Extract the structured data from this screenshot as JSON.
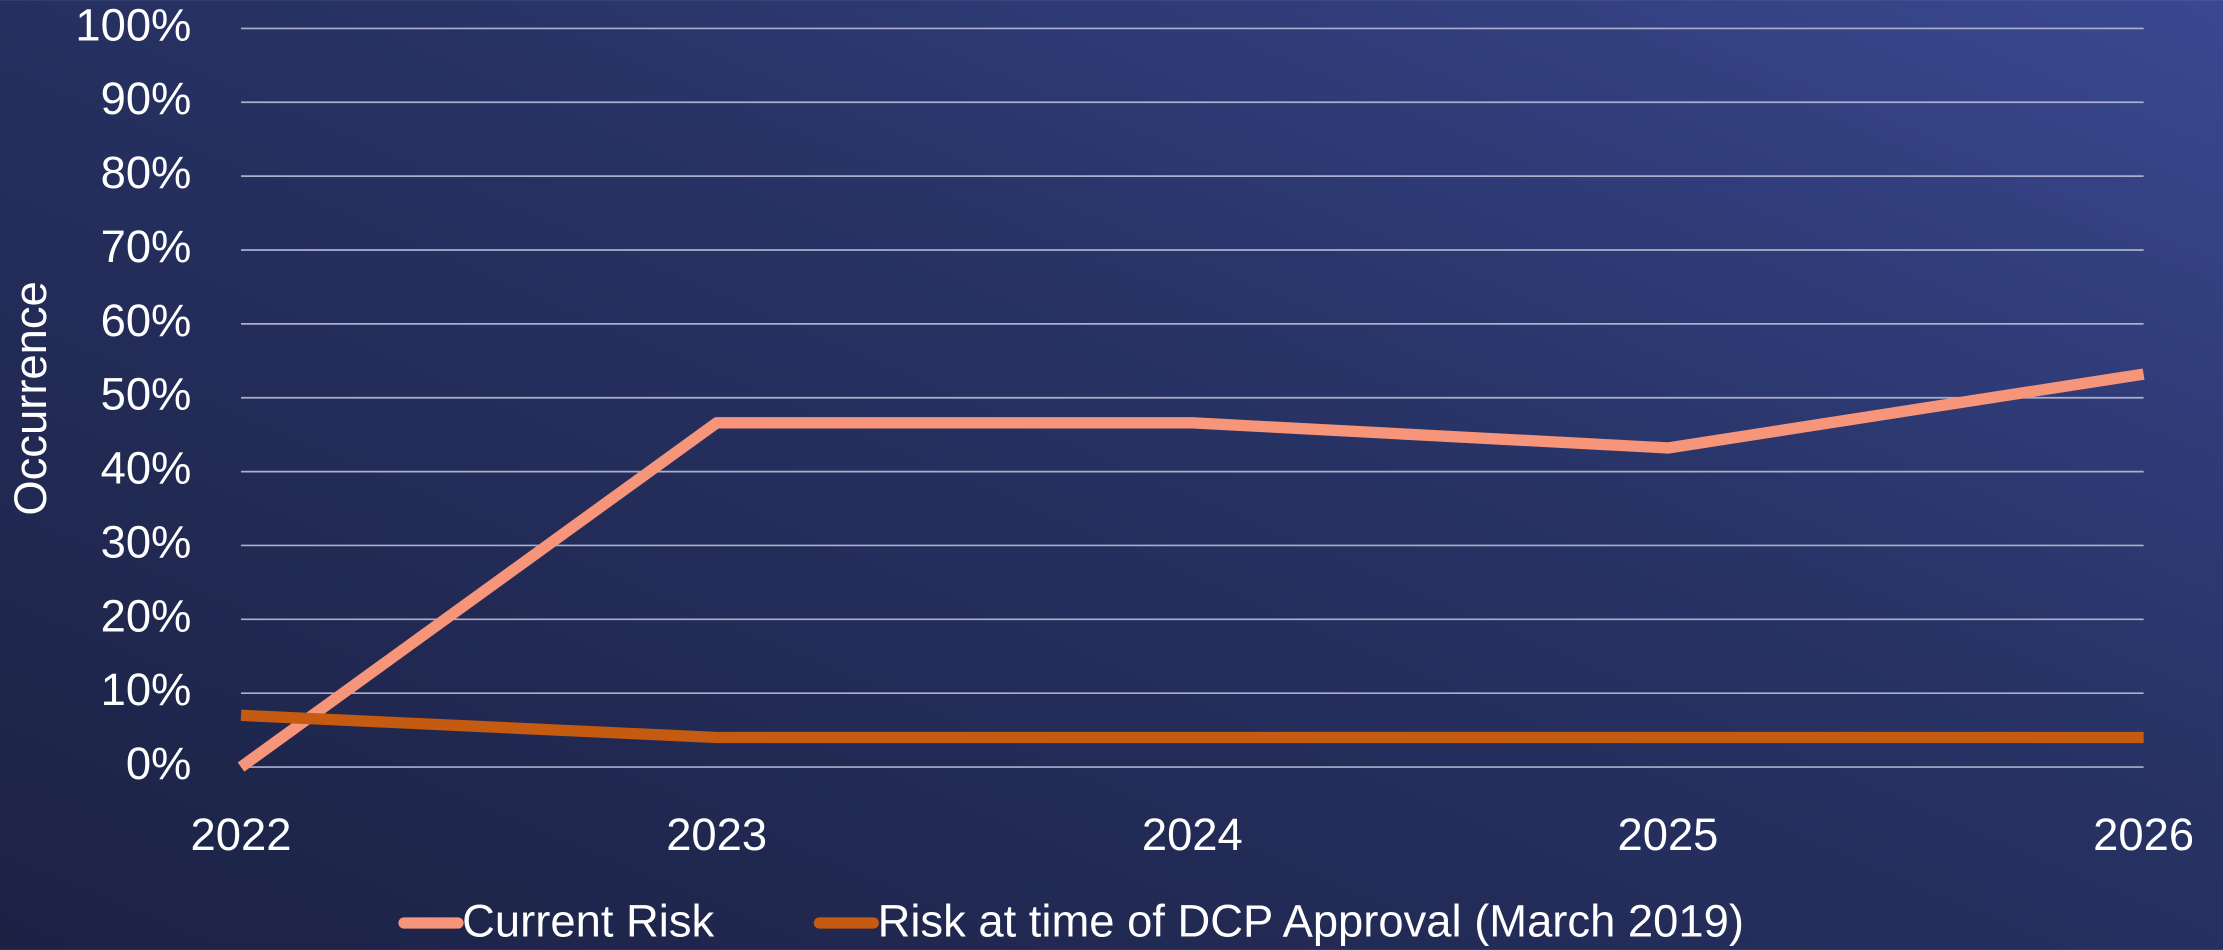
{
  "chart_data": {
    "type": "line",
    "categories": [
      "2022",
      "2023",
      "2024",
      "2025",
      "2026"
    ],
    "series": [
      {
        "name": "Current Risk",
        "color": "#f6957a",
        "values": [
          0,
          46.6,
          46.6,
          43.2,
          53.2
        ]
      },
      {
        "name": "Risk at time of DCP Approval (March 2019)",
        "color": "#c55a11",
        "values": [
          7,
          4,
          4,
          4,
          4
        ]
      }
    ],
    "ylabel": "Occurrence",
    "ylim": [
      0,
      100
    ],
    "yticks": [
      {
        "value": 0,
        "label": "0%"
      },
      {
        "value": 10,
        "label": "10%"
      },
      {
        "value": 20,
        "label": "20%"
      },
      {
        "value": 30,
        "label": "30%"
      },
      {
        "value": 40,
        "label": "40%"
      },
      {
        "value": 50,
        "label": "50%"
      },
      {
        "value": 60,
        "label": "60%"
      },
      {
        "value": 70,
        "label": "70%"
      },
      {
        "value": 80,
        "label": "80%"
      },
      {
        "value": 90,
        "label": "90%"
      },
      {
        "value": 100,
        "label": "100%"
      }
    ],
    "grid": true,
    "legend": "bottom"
  }
}
